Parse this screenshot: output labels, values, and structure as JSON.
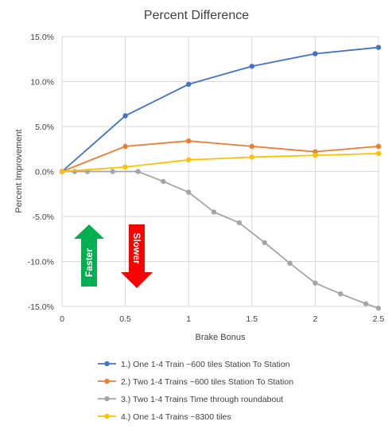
{
  "chart_data": {
    "type": "line",
    "title": "Percent Difference",
    "xlabel": "Brake Bonus",
    "ylabel": "Percent Improvement",
    "xlim": [
      0,
      2.5
    ],
    "ylim": [
      -0.15,
      0.15
    ],
    "x_ticks": [
      "0",
      "0.5",
      "1",
      "1.5",
      "2",
      "2.5"
    ],
    "y_ticks": [
      "15.0%",
      "10.0%",
      "5.0%",
      "0.0%",
      "-5.0%",
      "-10.0%",
      "-15.0%"
    ],
    "grid": true,
    "legend_position": "bottom",
    "series": [
      {
        "name": "1.) One 1-4 Train ~600 tiles Station To Station",
        "color": "#4472c4",
        "points": [
          [
            0,
            0.0
          ],
          [
            0.5,
            0.062
          ],
          [
            1,
            0.097
          ],
          [
            1.5,
            0.117
          ],
          [
            2,
            0.131
          ],
          [
            2.5,
            0.138
          ]
        ]
      },
      {
        "name": "2.) Two 1-4 Trains ~600 tiles Station To Station",
        "color": "#ed7d31",
        "points": [
          [
            0,
            0.0
          ],
          [
            0.5,
            0.028
          ],
          [
            1,
            0.034
          ],
          [
            1.5,
            0.028
          ],
          [
            2,
            0.022
          ],
          [
            2.5,
            0.028
          ]
        ]
      },
      {
        "name": "3.) Two 1-4 Trains Time through roundabout",
        "color": "#a5a5a5",
        "points": [
          [
            0,
            0.0
          ],
          [
            0.1,
            0.0
          ],
          [
            0.2,
            0.0
          ],
          [
            0.4,
            0.0
          ],
          [
            0.6,
            0.0
          ],
          [
            0.8,
            -0.011
          ],
          [
            1,
            -0.023
          ],
          [
            1.2,
            -0.045
          ],
          [
            1.4,
            -0.057
          ],
          [
            1.6,
            -0.079
          ],
          [
            1.8,
            -0.102
          ],
          [
            2,
            -0.124
          ],
          [
            2.2,
            -0.136
          ],
          [
            2.4,
            -0.147
          ],
          [
            2.5,
            -0.152
          ]
        ]
      },
      {
        "name": "4.) One 1-4 Trains ~8300 tiles",
        "color": "#ffc000",
        "points": [
          [
            0,
            0.0
          ],
          [
            0.5,
            0.005
          ],
          [
            1,
            0.013
          ],
          [
            1.5,
            0.016
          ],
          [
            2,
            0.018
          ],
          [
            2.5,
            0.02
          ]
        ]
      }
    ],
    "annotations": [
      {
        "text": "Faster",
        "direction": "up",
        "color": "#00b050"
      },
      {
        "text": "Slower",
        "direction": "down",
        "color": "#ff0000"
      }
    ]
  },
  "colors": {
    "grid": "#d9d9d9",
    "text": "#404040"
  }
}
